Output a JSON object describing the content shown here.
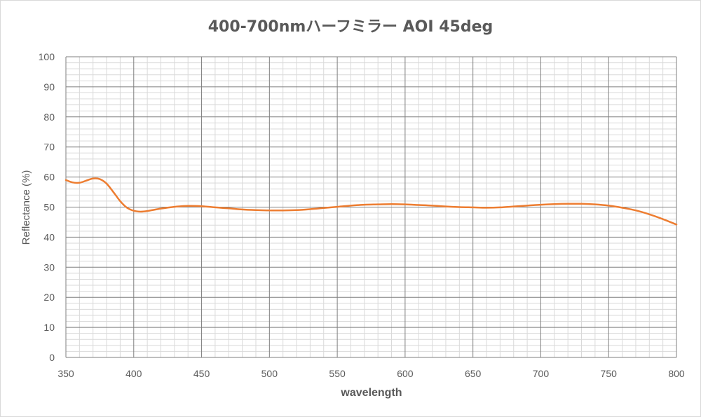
{
  "chart_data": {
    "type": "line",
    "title": "400-700nmハーフミラー AOI 45deg",
    "xlabel": "wavelength",
    "ylabel": "Reflectance (%)",
    "xlim": [
      350,
      800
    ],
    "ylim": [
      0,
      100
    ],
    "x_ticks": [
      350,
      400,
      450,
      500,
      550,
      600,
      650,
      700,
      750,
      800
    ],
    "y_ticks": [
      0,
      10,
      20,
      30,
      40,
      50,
      60,
      70,
      80,
      90,
      100
    ],
    "x_minor_step": 10,
    "y_minor_step": 2,
    "grid": true,
    "legend": "none",
    "series": [
      {
        "color": "#ED7D31",
        "x": [
          350,
          355,
          360,
          365,
          370,
          375,
          380,
          385,
          390,
          395,
          400,
          405,
          410,
          420,
          430,
          440,
          450,
          460,
          470,
          480,
          490,
          500,
          510,
          520,
          530,
          540,
          550,
          560,
          570,
          580,
          590,
          600,
          610,
          620,
          630,
          640,
          650,
          660,
          670,
          680,
          690,
          700,
          710,
          720,
          730,
          740,
          750,
          760,
          770,
          780,
          790,
          800
        ],
        "y": [
          59.0,
          58.2,
          58.1,
          58.8,
          59.5,
          59.3,
          57.8,
          55.0,
          52.0,
          49.8,
          48.8,
          48.5,
          48.7,
          49.5,
          50.1,
          50.4,
          50.3,
          49.9,
          49.6,
          49.2,
          49.0,
          48.9,
          48.9,
          49.0,
          49.3,
          49.7,
          50.1,
          50.5,
          50.8,
          50.9,
          51.0,
          50.9,
          50.7,
          50.5,
          50.2,
          50.0,
          49.9,
          49.8,
          49.9,
          50.2,
          50.5,
          50.8,
          51.0,
          51.1,
          51.1,
          50.9,
          50.5,
          49.8,
          48.9,
          47.6,
          46.0,
          44.2
        ]
      }
    ]
  }
}
